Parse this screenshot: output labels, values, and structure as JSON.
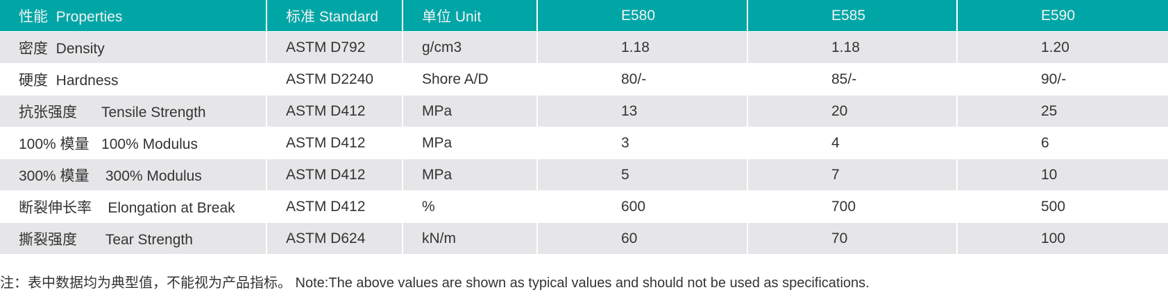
{
  "table": {
    "header": [
      "性能  Properties",
      "标准 Standard",
      "单位 Unit",
      "E580",
      "E585",
      "E590"
    ],
    "rows": [
      [
        "密度  Density",
        "ASTM D792",
        "g/cm3",
        "1.18",
        "1.18",
        "1.20"
      ],
      [
        "硬度  Hardness",
        "ASTM D2240",
        "Shore A/D",
        "80/-",
        "85/-",
        "90/-"
      ],
      [
        "抗张强度      Tensile Strength",
        "ASTM D412",
        "MPa",
        "13",
        "20",
        "25"
      ],
      [
        "100% 模量   100% Modulus",
        "ASTM D412",
        "MPa",
        "3",
        "4",
        "6"
      ],
      [
        "300% 模量    300% Modulus",
        "ASTM D412",
        "MPa",
        "5",
        "7",
        "10"
      ],
      [
        "断裂伸长率    Elongation at Break",
        "ASTM D412",
        "%",
        "600",
        "700",
        "500"
      ],
      [
        "撕裂强度       Tear Strength",
        "ASTM D624",
        "kN/m",
        "60",
        "70",
        "100"
      ]
    ]
  },
  "note": "注：表中数据均为典型值，不能视为产品指标。 Note:The above values are shown as typical values and should not be used as specifications."
}
